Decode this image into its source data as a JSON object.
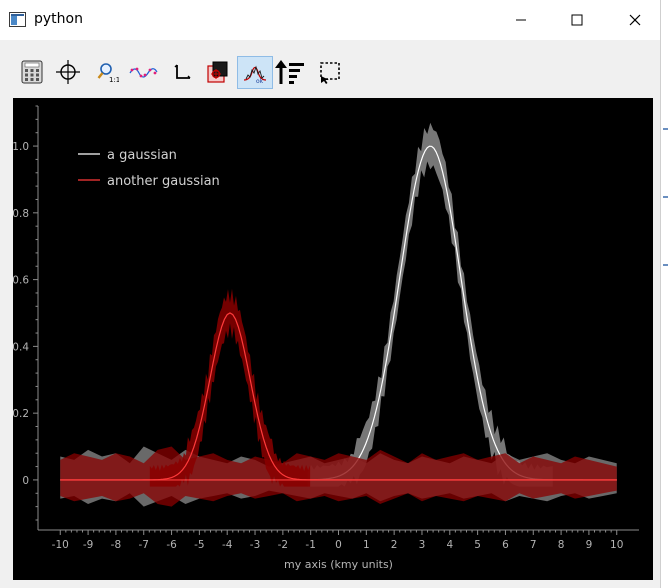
{
  "window": {
    "title": "python"
  },
  "toolbar": {
    "tools": [
      {
        "name": "calculator-icon",
        "active": false
      },
      {
        "name": "crosshair-icon",
        "active": false
      },
      {
        "name": "zoom-icon",
        "active": false
      },
      {
        "name": "curve-fit-icon",
        "active": false
      },
      {
        "name": "axes-icon",
        "active": false
      },
      {
        "name": "export-image-icon",
        "active": false
      },
      {
        "name": "gaussian-fit-icon",
        "active": true
      },
      {
        "name": "sort-descending-icon",
        "active": false
      },
      {
        "name": "select-region-icon",
        "active": false
      }
    ]
  },
  "chart_data": {
    "type": "line",
    "xlabel": "my axis (kmy units)",
    "ylabel": "",
    "xlim": [
      -10.8,
      10.8
    ],
    "ylim": [
      -0.15,
      1.12
    ],
    "xticks": [
      -10,
      -9,
      -8,
      -7,
      -6,
      -5,
      -4,
      -3,
      -2,
      -1,
      0,
      1,
      2,
      3,
      4,
      5,
      6,
      7,
      8,
      9,
      10
    ],
    "xtick_labels": [
      "-10",
      "-9",
      "-8",
      "-7",
      "-6",
      "-5",
      "-4",
      "-3",
      "-2",
      "-1",
      "0",
      "1",
      "2",
      "3",
      "4",
      "5",
      "6",
      "7",
      "8",
      "9",
      "10"
    ],
    "yticks": [
      0,
      0.2,
      0.4,
      0.6,
      0.8,
      1.0
    ],
    "ytick_labels": [
      "0",
      "0.2",
      "0.4",
      "0.6",
      "0.8",
      "1.0"
    ],
    "background": "#000000",
    "grid": false,
    "legend_position": "top-left",
    "series": [
      {
        "name": "a gaussian",
        "color": "#ffffff",
        "band_color": "#8c8c8c",
        "x": [
          -7,
          8.8
        ],
        "center": 3.3,
        "sigma": 1.1,
        "amplitude": 1.0,
        "noise_x": [
          -10,
          -9.5,
          -9,
          -8.5,
          -8,
          -7.5,
          -7,
          -6.5,
          -6,
          -5.5,
          -5,
          -4.5,
          -4,
          -3.5,
          -3,
          -2.5,
          -2,
          -1.5,
          -1,
          -0.5,
          0,
          0.5,
          1,
          1.5,
          2,
          2.5,
          3,
          3.5,
          4,
          4.5,
          5,
          5.5,
          6,
          6.5,
          7,
          7.5,
          8,
          8.5,
          9,
          9.5,
          10
        ],
        "noise_band": [
          0.07,
          -0.06,
          0.09,
          -0.07,
          0.08,
          -0.05,
          0.1,
          -0.08,
          0.06,
          -0.09,
          0.07,
          -0.06,
          0.05,
          -0.07,
          0.06,
          -0.04,
          0.05,
          -0.06,
          0.07,
          -0.05,
          0.06,
          -0.07,
          0.05,
          -0.08,
          0.06,
          -0.05,
          0.07,
          -0.06,
          0.05,
          -0.07,
          0.06,
          -0.05,
          0.08,
          -0.06,
          0.07,
          -0.08,
          0.06,
          -0.05,
          0.07,
          -0.06,
          0.05
        ]
      },
      {
        "name": "another gaussian",
        "color": "#ff3b3b",
        "band_color": "#8a0000",
        "x": [
          -10,
          10
        ],
        "center": -3.9,
        "sigma": 0.72,
        "amplitude": 0.5,
        "noise_x": [
          -10,
          -9.5,
          -9,
          -8.5,
          -8,
          -7.5,
          -7,
          -6.5,
          -6,
          -5.5,
          -5,
          -4.5,
          -4,
          -3.5,
          -3,
          -2.5,
          -2,
          -1.5,
          -1,
          -0.5,
          0,
          0.5,
          1,
          1.5,
          2,
          2.5,
          3,
          3.5,
          4,
          4.5,
          5,
          5.5,
          6,
          6.5,
          7,
          7.5,
          8,
          8.5,
          9,
          9.5,
          10
        ],
        "noise_band": [
          0.06,
          -0.08,
          0.07,
          -0.06,
          0.08,
          -0.07,
          0.05,
          -0.09,
          0.1,
          -0.06,
          0.07,
          -0.08,
          0.06,
          -0.05,
          0.07,
          -0.06,
          0.05,
          -0.08,
          0.07,
          -0.06,
          0.08,
          -0.07,
          0.06,
          -0.09,
          0.07,
          -0.05,
          0.08,
          -0.06,
          0.07,
          -0.08,
          0.06,
          -0.07,
          0.08,
          -0.05,
          0.07,
          -0.06,
          0.05,
          -0.07,
          0.06,
          -0.05,
          0.04
        ]
      }
    ]
  }
}
